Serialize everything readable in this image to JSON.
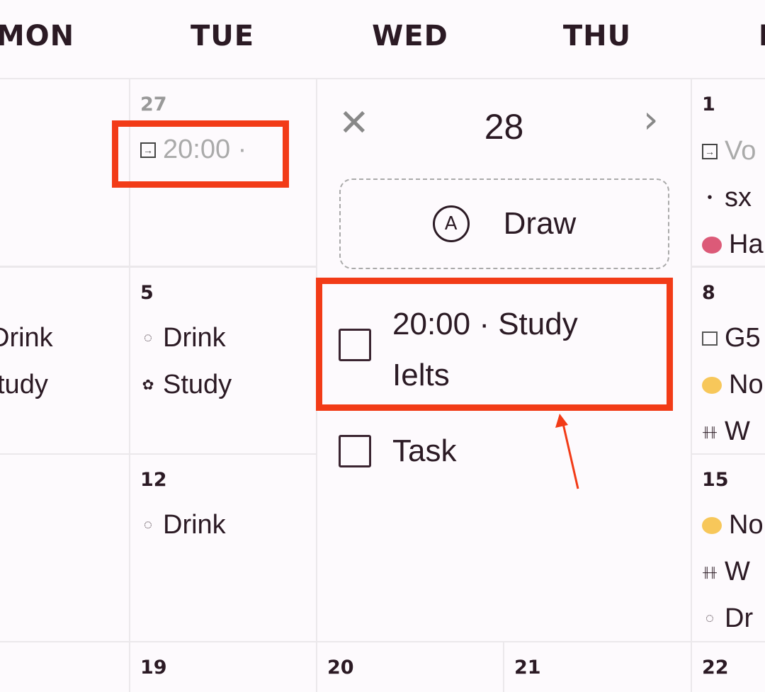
{
  "header": {
    "days": [
      "MON",
      "TUE",
      "WED",
      "THU",
      "F"
    ]
  },
  "cells": {
    "c27": {
      "num": "27",
      "events": [
        {
          "icon": "arrow-box-icon",
          "text": "20:00 ·"
        }
      ]
    },
    "c1": {
      "num": "1",
      "events": [
        {
          "icon": "arrow-box-icon",
          "text": "Vo"
        },
        {
          "icon": "bullet-icon",
          "text": "sx"
        },
        {
          "icon": "red-face-icon",
          "text": "Ha"
        }
      ]
    },
    "c4": {
      "events": [
        {
          "text": "Drink"
        },
        {
          "text": "tudy"
        }
      ]
    },
    "c5": {
      "num": "5",
      "events": [
        {
          "icon": "drop-icon",
          "text": "Drink"
        },
        {
          "icon": "brain-icon",
          "text": "Study"
        }
      ]
    },
    "c8": {
      "num": "8",
      "events": [
        {
          "icon": "checkbox-icon",
          "text": "G5"
        },
        {
          "icon": "yellow-face-icon",
          "text": "No"
        },
        {
          "icon": "dumbbell-icon",
          "text": "W"
        }
      ]
    },
    "c12": {
      "num": "12",
      "events": [
        {
          "icon": "drop-icon",
          "text": "Drink"
        }
      ]
    },
    "c15": {
      "num": "15",
      "events": [
        {
          "icon": "yellow-face-icon",
          "text": "No"
        },
        {
          "icon": "dumbbell-icon",
          "text": "W"
        },
        {
          "icon": "drop-icon",
          "text": "Dr"
        }
      ]
    },
    "c19": {
      "num": "19"
    },
    "c20": {
      "num": "20"
    },
    "c21": {
      "num": "21"
    },
    "c22": {
      "num": "22"
    }
  },
  "popup": {
    "date": "28",
    "draw_label": "Draw",
    "tasks": [
      {
        "text_line1": "20:00 · Study",
        "text_line2": "Ielts",
        "checked": false
      },
      {
        "text_line1": "Task",
        "checked": false
      }
    ]
  },
  "colors": {
    "highlight": "#f23b17",
    "background": "#fdfafd"
  }
}
